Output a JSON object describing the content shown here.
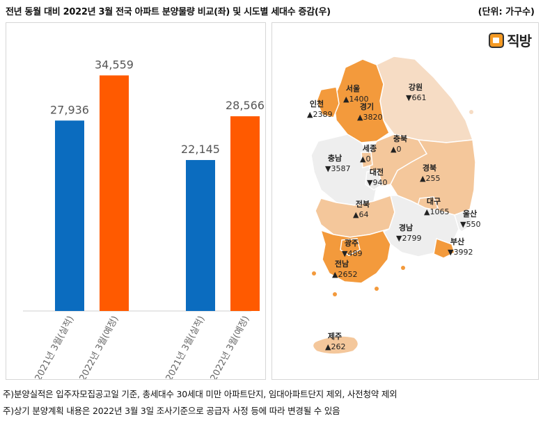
{
  "header": {
    "title": "전년 동월 대비 2022년 3월 전국 아파트 분양물량 비교(좌) 및 시도별 세대수 증감(우)",
    "unit": "(단위: 가구수)"
  },
  "logo": {
    "text": "직방",
    "icon": "house-logo-icon"
  },
  "chart_data": [
    {
      "type": "bar",
      "title": "",
      "categories": [
        "2021년 3월(실적)",
        "2022년 3월(예정)",
        "2021년 3월(실적)",
        "2022년 3월(예정)"
      ],
      "groups": [
        {
          "name": "group-1",
          "bars": [
            {
              "label": "2021년 3월(실적)",
              "value": 27936,
              "display": "27,936",
              "color": "#0b6cbf"
            },
            {
              "label": "2022년 3월(예정)",
              "value": 34559,
              "display": "34,559",
              "color": "#ff5a00"
            }
          ]
        },
        {
          "name": "group-2",
          "bars": [
            {
              "label": "2021년 3월(실적)",
              "value": 22145,
              "display": "22,145",
              "color": "#0b6cbf"
            },
            {
              "label": "2022년 3월(예정)",
              "value": 28566,
              "display": "28,566",
              "color": "#ff5a00"
            }
          ]
        }
      ],
      "ylim": [
        0,
        40000
      ],
      "xlabel": "",
      "ylabel": "",
      "grid": false
    },
    {
      "type": "table",
      "title": "시도별 세대수 증감",
      "regions": [
        {
          "name": "서울",
          "dir": "up",
          "value": "1400",
          "color": "#f39a3c"
        },
        {
          "name": "인천",
          "dir": "up",
          "value": "2389",
          "color": "#f39a3c"
        },
        {
          "name": "경기",
          "dir": "up",
          "value": "3820",
          "color": "#f39a3c"
        },
        {
          "name": "강원",
          "dir": "down",
          "value": "661",
          "color": "#f6dcc4"
        },
        {
          "name": "충북",
          "dir": "up",
          "value": "0",
          "color": "#f4c79b"
        },
        {
          "name": "세종",
          "dir": "up",
          "value": "0",
          "color": "#f4c79b"
        },
        {
          "name": "충남",
          "dir": "down",
          "value": "3587",
          "color": "#eeeeee"
        },
        {
          "name": "대전",
          "dir": "down",
          "value": "940",
          "color": "#eeeeee"
        },
        {
          "name": "경북",
          "dir": "up",
          "value": "255",
          "color": "#f4c79b"
        },
        {
          "name": "대구",
          "dir": "up",
          "value": "1065",
          "color": "#f4c79b"
        },
        {
          "name": "전북",
          "dir": "up",
          "value": "64",
          "color": "#f4c79b"
        },
        {
          "name": "울산",
          "dir": "down",
          "value": "550",
          "color": "#eeeeee"
        },
        {
          "name": "경남",
          "dir": "down",
          "value": "2799",
          "color": "#eeeeee"
        },
        {
          "name": "광주",
          "dir": "down",
          "value": "489",
          "color": "#f39a3c"
        },
        {
          "name": "부산",
          "dir": "down",
          "value": "3992",
          "color": "#f39a3c"
        },
        {
          "name": "전남",
          "dir": "up",
          "value": "2652",
          "color": "#f39a3c"
        },
        {
          "name": "제주",
          "dir": "up",
          "value": "262",
          "color": "#f4c79b"
        }
      ],
      "symbols": {
        "up": "▲",
        "down": "▼"
      }
    }
  ],
  "footnotes": [
    "주)분양실적은 입주자모집공고일 기준, 총세대수 30세대 미만 아파트단지, 임대아파트단지 제외, 사전청약 제외",
    "주)상기 분양계획 내용은 2022년 3월 3일 조사기준으로 공급자 사정 등에 따라 변경될 수 있음"
  ]
}
